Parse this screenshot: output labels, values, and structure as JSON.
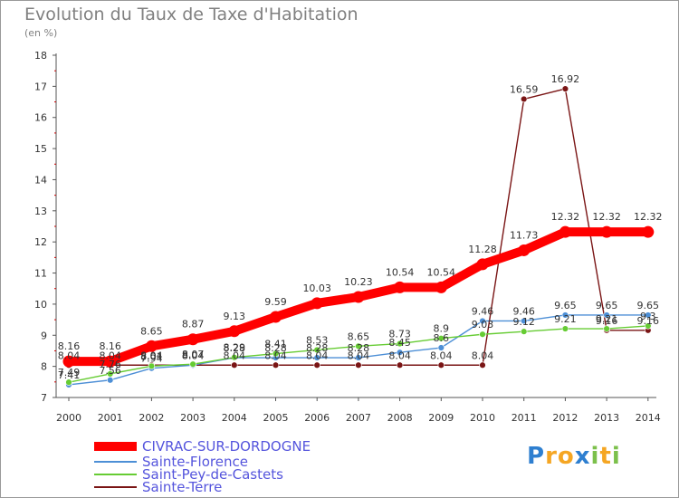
{
  "chart_data": {
    "type": "line",
    "title": "Evolution du Taux de Taxe d'Habitation",
    "unit_label": "(en %)",
    "ylim": [
      7,
      18
    ],
    "yticks": [
      "7",
      "8",
      "9",
      "10",
      "11",
      "12",
      "13",
      "14",
      "15",
      "16",
      "17",
      "18"
    ],
    "categories": [
      "2000",
      "2001",
      "2002",
      "2003",
      "2004",
      "2005",
      "2006",
      "2007",
      "2008",
      "2009",
      "2010",
      "2011",
      "2012",
      "2013",
      "2014"
    ],
    "grid": false,
    "legend_position": "bottom-left",
    "series": [
      {
        "name": "CIVRAC-SUR-DORDOGNE",
        "color": "#ff0000",
        "values": [
          8.16,
          8.16,
          8.65,
          8.87,
          9.13,
          9.59,
          10.03,
          10.23,
          10.54,
          10.54,
          11.28,
          11.73,
          12.32,
          12.32,
          12.32
        ],
        "labels": [
          "8.16",
          "8.16",
          "8.65",
          "8.87",
          "9.13",
          "9.59",
          "10.03",
          "10.23",
          "10.54",
          "10.54",
          "11.28",
          "11.73",
          "12.32",
          "12.32",
          "12.32"
        ]
      },
      {
        "name": "Sainte-Florence",
        "color": "#4d8fd6",
        "values": [
          7.41,
          7.56,
          7.94,
          8.04,
          8.28,
          8.28,
          8.28,
          8.28,
          8.45,
          8.6,
          9.46,
          9.46,
          9.65,
          9.65,
          9.65
        ],
        "labels": [
          "7.41",
          "7.56",
          "7.94",
          "8.04",
          "8.28",
          "8.28",
          "8.28",
          "8.28",
          "8.45",
          "8.6",
          "9.46",
          "9.46",
          "9.65",
          "9.65",
          "9.65"
        ]
      },
      {
        "name": "Saint-Pey-de-Castets",
        "color": "#66cc33",
        "values": [
          7.49,
          7.76,
          8.01,
          8.07,
          8.29,
          8.41,
          8.53,
          8.65,
          8.73,
          8.9,
          9.03,
          9.12,
          9.21,
          9.21,
          9.3
        ],
        "labels": [
          "7.49",
          "7.76",
          "8.01",
          "8.07",
          "8.29",
          "8.41",
          "8.53",
          "8.65",
          "8.73",
          "8.9",
          "9.03",
          "9.12",
          "9.21",
          "9.21",
          "9.3"
        ]
      },
      {
        "name": "Sainte-Terre",
        "color": "#7a1515",
        "values": [
          8.04,
          8.04,
          8.04,
          8.04,
          8.04,
          8.04,
          8.04,
          8.04,
          8.04,
          8.04,
          8.04,
          16.59,
          16.92,
          9.16,
          9.16
        ],
        "labels": [
          "8.04",
          "8.04",
          "8.04",
          "8.04",
          "8.04",
          "8.04",
          "8.04",
          "8.04",
          "8.04",
          "8.04",
          "8.04",
          "16.59",
          "16.92",
          "9.16",
          "9.16"
        ]
      }
    ]
  },
  "brand": {
    "text": "Proxiti",
    "colors": [
      "#2e7fd0",
      "#f5a623",
      "#f5a623",
      "#2e7fd0",
      "#7cc04b",
      "#f5a623",
      "#7cc04b"
    ]
  }
}
